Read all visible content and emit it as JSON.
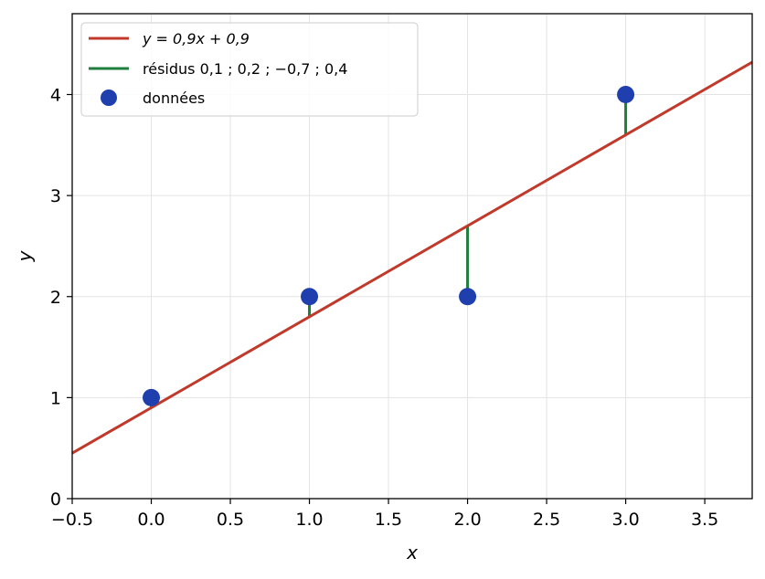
{
  "chart_data": {
    "type": "scatter",
    "xlabel": "x",
    "ylabel": "y",
    "xlim": [
      -0.5,
      3.8
    ],
    "ylim": [
      0,
      4.8
    ],
    "x_ticks": [
      "−0.5",
      "0.0",
      "0.5",
      "1.0",
      "1.5",
      "2.0",
      "2.5",
      "3.0",
      "3.5"
    ],
    "x_tick_values": [
      -0.5,
      0.0,
      0.5,
      1.0,
      1.5,
      2.0,
      2.5,
      3.0,
      3.5
    ],
    "y_ticks": [
      "0",
      "1",
      "2",
      "3",
      "4"
    ],
    "y_tick_values": [
      0,
      1,
      2,
      3,
      4
    ],
    "grid": true,
    "legend_position": "top-left",
    "fit_line": {
      "name": "y = 0,9x + 0,9",
      "slope": 0.9,
      "intercept": 0.9,
      "color": "#c0392b"
    },
    "residuals": {
      "name": "résidus 0,1 ; 0,2 ; −0,7 ; 0,4",
      "values": [
        0.1,
        0.2,
        -0.7,
        0.4
      ],
      "color": "#1e7e3c"
    },
    "data_points": {
      "name": "données",
      "x": [
        0,
        1,
        2,
        3
      ],
      "y": [
        1,
        2,
        2,
        4
      ],
      "color": "#1f3fae"
    }
  }
}
